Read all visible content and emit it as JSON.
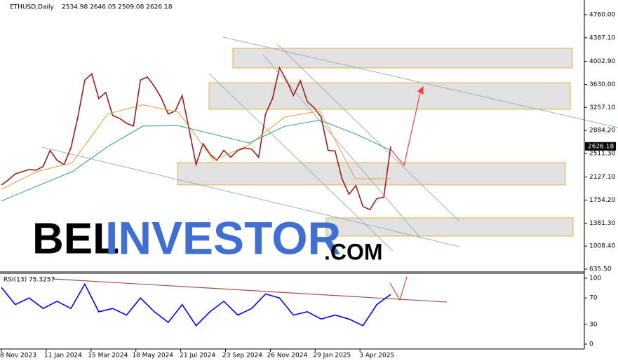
{
  "chart_data": [
    {
      "type": "line",
      "symbol": "ETHUSD,Daily",
      "ohlc": "2534.98 2646.05 2509.08 2626.18",
      "last_price": "2626.18",
      "watermark": [
        "BEL",
        "INVESTOR",
        ".COM"
      ],
      "xticks": [
        "8 Nov 2023",
        "11 Jan 2024",
        "15 Mar 2024",
        "18 May 2024",
        "21 Jul 2024",
        "23 Sep 2024",
        "26 Nov 2024",
        "29 Jan 2025",
        "3 Apr 2025"
      ],
      "ylim": [
        590,
        4976
      ],
      "yticks": [
        {
          "value": 4760,
          "label": "4760.00"
        },
        {
          "value": 4387.1,
          "label": "4387.10"
        },
        {
          "value": 4002.9,
          "label": "4002.90"
        },
        {
          "value": 3630,
          "label": "3630.00"
        },
        {
          "value": 3257.1,
          "label": "3257.10"
        },
        {
          "value": 2884.2,
          "label": "2884.20"
        },
        {
          "value": 2511.3,
          "label": "2511.30"
        },
        {
          "value": 2127.1,
          "label": "2127.10"
        },
        {
          "value": 1754.2,
          "label": "1754.20"
        },
        {
          "value": 1381.3,
          "label": "1381.30"
        },
        {
          "value": 1008.4,
          "label": "1008.40"
        },
        {
          "value": 635.5,
          "label": "635.50"
        }
      ],
      "zones": [
        [
          3897,
          4215
        ],
        [
          3227,
          3658
        ],
        [
          2000,
          2363
        ],
        [
          1170,
          1466
        ]
      ],
      "series": [
        {
          "color": "#9b1b1b",
          "values": [
            2000,
            2080,
            2180,
            2215,
            2250,
            2240,
            2300,
            2560,
            2400,
            2330,
            2600,
            3100,
            3700,
            3800,
            3400,
            3500,
            3125,
            3080,
            3000,
            2955,
            3700,
            3750,
            3600,
            3410,
            3150,
            3200,
            3450,
            2900,
            2330,
            2670,
            2500,
            2400,
            2560,
            2450,
            2560,
            2600,
            2580,
            2450,
            3150,
            3400,
            3900,
            3700,
            3450,
            3690,
            3350,
            3250,
            3100,
            2560,
            2550,
            2100,
            1850,
            1990,
            1650,
            1600,
            1780,
            1800,
            2626.18
          ]
        },
        {
          "color": "#e0a030",
          "values": [
            1930,
            2215,
            2360,
            3150,
            3300,
            3180,
            2400,
            2650,
            3100,
            3200,
            2100,
            2100
          ]
        },
        {
          "color": "#2a9d8f",
          "values": [
            1740,
            1980,
            2215,
            2620,
            2955,
            2960,
            2820,
            2680,
            2950,
            3050,
            2830,
            2560
          ]
        }
      ]
    },
    {
      "type": "line",
      "title": "RSI(13) 75.3257",
      "ylim": [
        -7.4,
        107.4
      ],
      "yticks": [
        100,
        70,
        30,
        0
      ],
      "series": [
        {
          "color": "#0000ff",
          "values": [
            86,
            60,
            70,
            54,
            65,
            54,
            91,
            49,
            54,
            44,
            70,
            49,
            33,
            60,
            28,
            49,
            65,
            44,
            54,
            76,
            70,
            44,
            49,
            38,
            44,
            38,
            28,
            60,
            75.3257
          ]
        }
      ]
    }
  ]
}
